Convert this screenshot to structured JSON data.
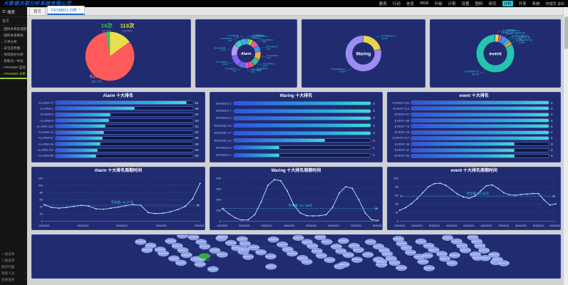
{
  "topbar": {
    "title": "大数据关联分析系统有限公司",
    "nav": [
      {
        "label": "勤务"
      },
      {
        "label": "行动"
      },
      {
        "label": "信息"
      },
      {
        "label": "WEB"
      },
      {
        "label": "升级"
      },
      {
        "label": "计划"
      },
      {
        "label": "设置"
      },
      {
        "label": "图料"
      },
      {
        "label": "研究"
      },
      {
        "label": "分析",
        "active": true
      },
      {
        "label": "开发"
      },
      {
        "label": "系统"
      }
    ],
    "user_label": "管理员 退出"
  },
  "sidebar": {
    "search_label": "搜索",
    "home_label": "首页",
    "items": [
      {
        "label": "国际关系处理配置"
      },
      {
        "label": "国际关系报表"
      },
      {
        "label": "工单分析"
      },
      {
        "label": "安全态势图"
      },
      {
        "label": "持续防护分析"
      },
      {
        "label": "智能化一体化"
      },
      {
        "label": "PROMER 监控"
      },
      {
        "label": "PROMER 分析",
        "active": true
      }
    ],
    "bottom_items": [
      {
        "label": "一级菜单"
      },
      {
        "label": "二级菜单"
      },
      {
        "label": "操作内容"
      },
      {
        "label": "系统人员"
      },
      {
        "label": "登录查询"
      }
    ]
  },
  "tabs": [
    {
      "label": "首页"
    },
    {
      "label": "FESMELL分析",
      "active": true,
      "closable": true
    }
  ],
  "chart_data": [
    {
      "type": "pie",
      "id": "overview-pie",
      "slices": [
        {
          "name": "Waring",
          "label": "113次",
          "value": 113,
          "pct": "14.8%",
          "color": "#e8e04a"
        },
        {
          "name": "Alarm",
          "label": "630次",
          "value": 630,
          "pct": "82.7%",
          "color": "#ff5b5b"
        },
        {
          "name": "event",
          "label": "19次",
          "value": 19,
          "pct": "2.5%",
          "color": "#3fbf5a"
        }
      ]
    },
    {
      "type": "donut",
      "id": "alarm-donut",
      "center_label": "Alarm",
      "segments": [
        {
          "name": "ALARM-3",
          "value": 13,
          "pct": "2.1%",
          "color": "#36c6f0"
        },
        {
          "name": "ALARM-8",
          "value": 16,
          "pct": "2.5%",
          "color": "#5be37a"
        },
        {
          "name": "ALARM-15",
          "value": 21,
          "pct": "3.3%",
          "color": "#b7e84a"
        },
        {
          "name": "ALARM-21",
          "value": 49,
          "pct": "7.8%",
          "color": "#f25a8f"
        },
        {
          "name": "ALARM-33",
          "value": 48,
          "pct": "7.6%",
          "color": "#3f8ef2"
        },
        {
          "name": "ALARM-40",
          "value": 57,
          "pct": "9.0%",
          "color": "#f2a93f"
        },
        {
          "name": "ALARM-52",
          "value": 52,
          "pct": "8.3%",
          "color": "#2fbf9a"
        },
        {
          "name": "ALARM-61",
          "value": 38,
          "pct": "6.0%",
          "color": "#f25555"
        },
        {
          "name": "ALARM-67",
          "value": 33,
          "pct": "5.2%",
          "color": "#e94fd4"
        },
        {
          "name": "ALARM-70",
          "value": 47,
          "pct": "7.5%",
          "color": "#5e6df2"
        },
        {
          "name": "ALARM-77",
          "value": 81,
          "pct": "12.9%",
          "color": "#8a5ff2"
        },
        {
          "name": "ALARM-85",
          "value": 86,
          "pct": "13.7%",
          "color": "#b39af5"
        },
        {
          "name": "ALARM-90",
          "value": 50,
          "pct": "7.9%",
          "color": "#35d0c0"
        },
        {
          "name": "ALARM-99",
          "value": 39,
          "pct": "6.2%",
          "color": "#49a9f5"
        }
      ]
    },
    {
      "type": "donut",
      "id": "waring-donut",
      "center_label": "Waring",
      "segments": [
        {
          "name": "WARING-4",
          "value": 24,
          "pct": "21.2%",
          "color": "#e8d34e"
        },
        {
          "name": "WARING-9",
          "value": 89,
          "pct": "78.8%",
          "color": "#9d8df0"
        }
      ]
    },
    {
      "type": "donut",
      "id": "event-donut",
      "center_label": "event",
      "segments": [
        {
          "name": "EVENT-9",
          "value": 4,
          "pct": "3.4%",
          "color": "#f0d34e"
        },
        {
          "name": "EVENT-17",
          "value": 3,
          "pct": "2.6%",
          "color": "#ff5a76"
        },
        {
          "name": "EVENT-23",
          "value": 6,
          "pct": "5.1%",
          "color": "#3f8ef2"
        },
        {
          "name": "EVENT-31",
          "value": 2,
          "pct": "1.7%",
          "color": "#49d6f0"
        },
        {
          "name": "EVENT-40",
          "value": 2,
          "pct": "1.7%",
          "color": "#5be37a"
        },
        {
          "name": "EVENT-52",
          "value": 3,
          "pct": "2.6%",
          "color": "#f2a93f"
        },
        {
          "name": "EVENT-73",
          "value": 97,
          "pct": "82.9%",
          "color": "#25c4ad"
        }
      ]
    },
    {
      "type": "hbar",
      "id": "alarm-top10",
      "title": "Alarm 十大排名",
      "max": 85,
      "categories": [
        "ALARM-77",
        "ALARM-1",
        "ALARM-9",
        "ALARM-5",
        "ALARM-122",
        "ALARM-12",
        "ALARM-67",
        "ALARM-18",
        "ALARM-111",
        "ALARM-99"
      ],
      "values": [
        81,
        49,
        34,
        33,
        31,
        30,
        29,
        28,
        26,
        25
      ]
    },
    {
      "type": "hbar",
      "id": "waring-top10",
      "title": "Waring 十大排名",
      "max": 3,
      "categories": [
        "WARING-3",
        "WARING-7",
        "WARING-2",
        "WARING-10",
        "WARING-17",
        "WARING-12",
        "WARING-5",
        "WARING-1"
      ],
      "values": [
        3,
        3,
        3,
        3,
        3,
        2,
        1,
        1
      ]
    },
    {
      "type": "hbar",
      "id": "event-top10",
      "title": "event 十大排名",
      "max": 4,
      "categories": [
        "EVENT-101",
        "EVENT-114",
        "EVENT-07",
        "EVENT-98",
        "EVENT-73",
        "EVENT-15",
        "EVENT-217",
        "EVENT-38",
        "EVENT-42",
        "EVENT-96"
      ],
      "values": [
        4,
        4,
        4,
        4,
        4,
        4,
        4,
        3,
        3,
        3
      ]
    },
    {
      "type": "line",
      "id": "alarm-trend",
      "title": "Alarm 十大排名周期时间",
      "ylim": [
        0,
        120
      ],
      "ystep": 20,
      "avg": 44.27,
      "avg_label": "平均值: 44.27次",
      "x_labels": [
        "1/09/2021",
        "3/09/2021",
        "5/09/2021",
        "7/09/2021",
        "9/09/2021"
      ],
      "values": [
        46,
        38,
        36,
        38,
        41,
        44,
        42,
        34,
        33,
        36,
        39,
        43,
        46,
        44,
        24,
        21,
        22,
        26,
        32,
        41,
        62,
        105
      ]
    },
    {
      "type": "line",
      "id": "waring-trend",
      "title": "Waring 十大排名周期时间",
      "ylim": [
        0,
        400
      ],
      "ystep": 100,
      "avg": 117.28,
      "avg_label": "平均值: 117.28次",
      "x_labels": [
        "1/09/2021",
        "2/09/2021",
        "3/09/2021",
        "4/09/2021",
        "5/09/2021",
        "6/09/2021",
        "7/09/2021",
        "8/09/2021"
      ],
      "values": [
        115,
        70,
        30,
        10,
        12,
        60,
        180,
        330,
        385,
        375,
        280,
        150,
        75,
        50,
        48,
        50,
        60,
        130,
        260,
        320,
        305,
        200,
        75,
        12,
        6
      ]
    },
    {
      "type": "line",
      "id": "event-trend",
      "title": "event 十大排名周期时间",
      "ylim": [
        0,
        100
      ],
      "ystep": 20,
      "avg": 57.62,
      "avg_label": "平均值: 57.62次",
      "x_labels": [
        "1/09/2021",
        "2/09/2021",
        "3/09/2021",
        "4/09/2021",
        "5/09/2021",
        "6/09/2021",
        "7/09/2021",
        "8/09/2021",
        "9/09/2021",
        "10/09/2021"
      ],
      "values": [
        25,
        31,
        40,
        52,
        66,
        80,
        87,
        88,
        83,
        73,
        63,
        56,
        53,
        58,
        70,
        82,
        84,
        76,
        66,
        61,
        60,
        62,
        63,
        64,
        64,
        49,
        37,
        40
      ]
    },
    {
      "type": "network",
      "id": "relation-graph",
      "label_prefix": "ALARM-",
      "node_color": "#93a6ea",
      "edge_color": "#aab6e8",
      "root_node_color": "#2fae3e",
      "root_node_label": "ALARM-0"
    }
  ]
}
